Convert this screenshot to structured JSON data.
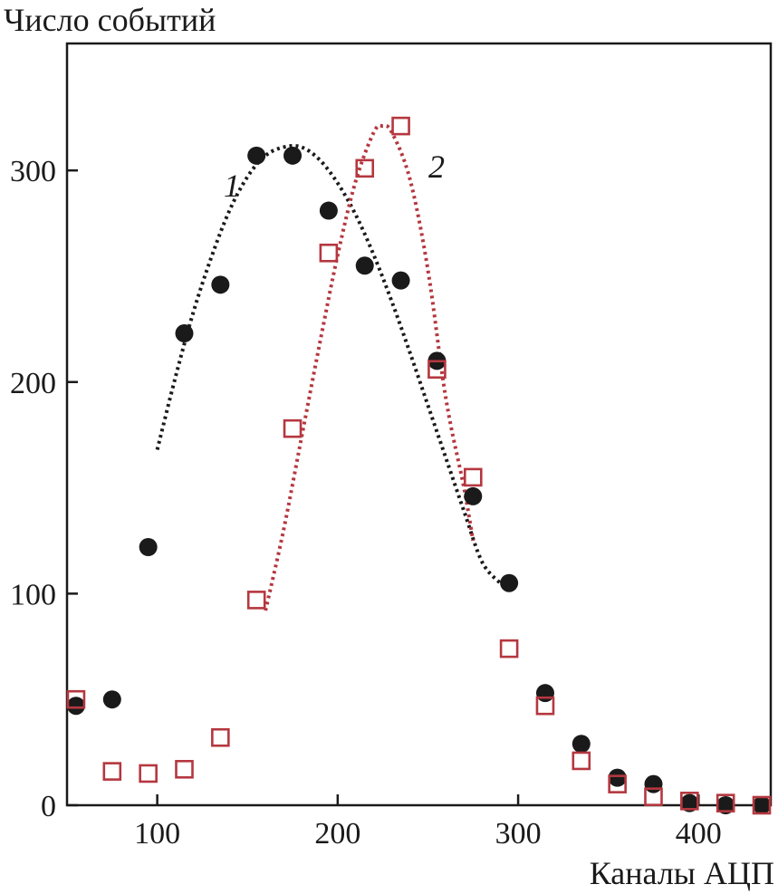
{
  "chart_data": {
    "type": "scatter",
    "ylabel": "Число событий",
    "xlabel": "Каналы АЦП",
    "xlim": [
      50,
      440
    ],
    "ylim": [
      0,
      360
    ],
    "x_ticks": [
      100,
      200,
      300,
      400
    ],
    "y_ticks": [
      0,
      100,
      200,
      300
    ],
    "x_tick_labels": [
      "100",
      "200",
      "300",
      "400"
    ],
    "y_tick_labels": [
      "0",
      "100",
      "200",
      "300"
    ],
    "grid": false,
    "legend": "none",
    "series": [
      {
        "marker": "filled-circle",
        "color": "#1a1a1a",
        "x": [
          55,
          75,
          95,
          115,
          135,
          155,
          175,
          195,
          215,
          235,
          255,
          275,
          295,
          315,
          335,
          355,
          375,
          395,
          415,
          435
        ],
        "y": [
          47,
          50,
          122,
          223,
          246,
          307,
          307,
          281,
          255,
          248,
          210,
          146,
          105,
          53,
          29,
          13,
          10,
          1,
          0,
          0
        ]
      },
      {
        "marker": "open-square",
        "color": "#b5373f",
        "x": [
          55,
          75,
          95,
          115,
          135,
          155,
          175,
          195,
          215,
          235,
          255,
          275,
          295,
          315,
          335,
          355,
          375,
          395,
          415,
          435
        ],
        "y": [
          50,
          16,
          15,
          17,
          32,
          97,
          178,
          261,
          301,
          321,
          206,
          155,
          74,
          47,
          21,
          10,
          4,
          2,
          1,
          0
        ]
      }
    ],
    "fits": [
      {
        "label": "1",
        "color": "#1a1a1a",
        "style": "dotted",
        "x": [
          100,
          110,
          120,
          130,
          140,
          150,
          160,
          170,
          180,
          190,
          200,
          210,
          220,
          230,
          240,
          250,
          260,
          270,
          280,
          290
        ],
        "y": [
          168,
          202,
          233,
          259,
          281,
          297,
          307,
          311,
          311,
          305,
          294,
          279,
          260,
          238,
          214,
          189,
          164,
          139,
          115,
          105
        ]
      },
      {
        "label": "2",
        "color": "#b5373f",
        "style": "dotted",
        "x": [
          160,
          170,
          180,
          190,
          200,
          210,
          220,
          225,
          230,
          240,
          250,
          260,
          270,
          275
        ],
        "y": [
          92,
          130,
          174,
          218,
          260,
          295,
          318,
          321,
          318,
          296,
          253,
          192,
          150,
          125
        ]
      }
    ]
  }
}
